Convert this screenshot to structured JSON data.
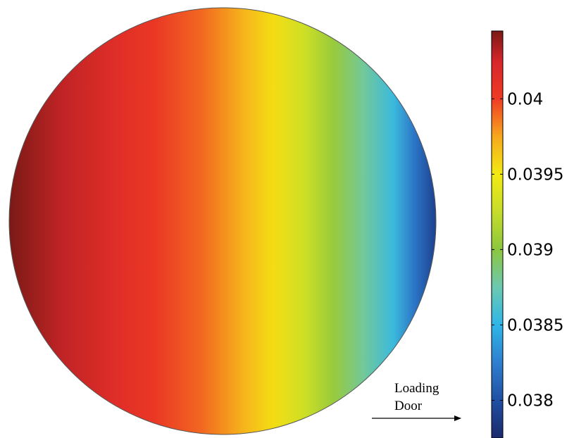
{
  "chart_data": {
    "type": "heatmap",
    "shape": "circle",
    "gradient_direction": "horizontal",
    "colormap": [
      {
        "value": 0.03775,
        "color": "#1b2a6b"
      },
      {
        "value": 0.038,
        "color": "#1f4fa3"
      },
      {
        "value": 0.03825,
        "color": "#2f7fcf"
      },
      {
        "value": 0.0385,
        "color": "#2fb6e8"
      },
      {
        "value": 0.03875,
        "color": "#6cc9b0"
      },
      {
        "value": 0.039,
        "color": "#8cc63f"
      },
      {
        "value": 0.03925,
        "color": "#c6dc2a"
      },
      {
        "value": 0.0395,
        "color": "#f2ea12"
      },
      {
        "value": 0.03975,
        "color": "#f7a81d"
      },
      {
        "value": 0.04,
        "color": "#ef3b24"
      },
      {
        "value": 0.04025,
        "color": "#d6262a"
      },
      {
        "value": 0.04045,
        "color": "#7a1a16"
      }
    ],
    "field_profile": [
      {
        "x": 0.0,
        "value": 0.04045
      },
      {
        "x": 0.12,
        "value": 0.0403
      },
      {
        "x": 0.25,
        "value": 0.04015
      },
      {
        "x": 0.34,
        "value": 0.04005
      },
      {
        "x": 0.45,
        "value": 0.0399
      },
      {
        "x": 0.55,
        "value": 0.0397
      },
      {
        "x": 0.62,
        "value": 0.03955
      },
      {
        "x": 0.69,
        "value": 0.0393
      },
      {
        "x": 0.76,
        "value": 0.03905
      },
      {
        "x": 0.83,
        "value": 0.0388
      },
      {
        "x": 0.9,
        "value": 0.03855
      },
      {
        "x": 0.95,
        "value": 0.0382
      },
      {
        "x": 1.0,
        "value": 0.0379
      }
    ],
    "colorbar": {
      "range": [
        0.03775,
        0.04045
      ],
      "ticks": [
        {
          "value": 0.04,
          "label": "0.04"
        },
        {
          "value": 0.0395,
          "label": "0.0395"
        },
        {
          "value": 0.039,
          "label": "0.039"
        },
        {
          "value": 0.0385,
          "label": "0.0385"
        },
        {
          "value": 0.038,
          "label": "0.038"
        }
      ]
    },
    "annotation": {
      "lines": [
        "Loading",
        "Door"
      ],
      "arrow_direction": "right"
    }
  }
}
